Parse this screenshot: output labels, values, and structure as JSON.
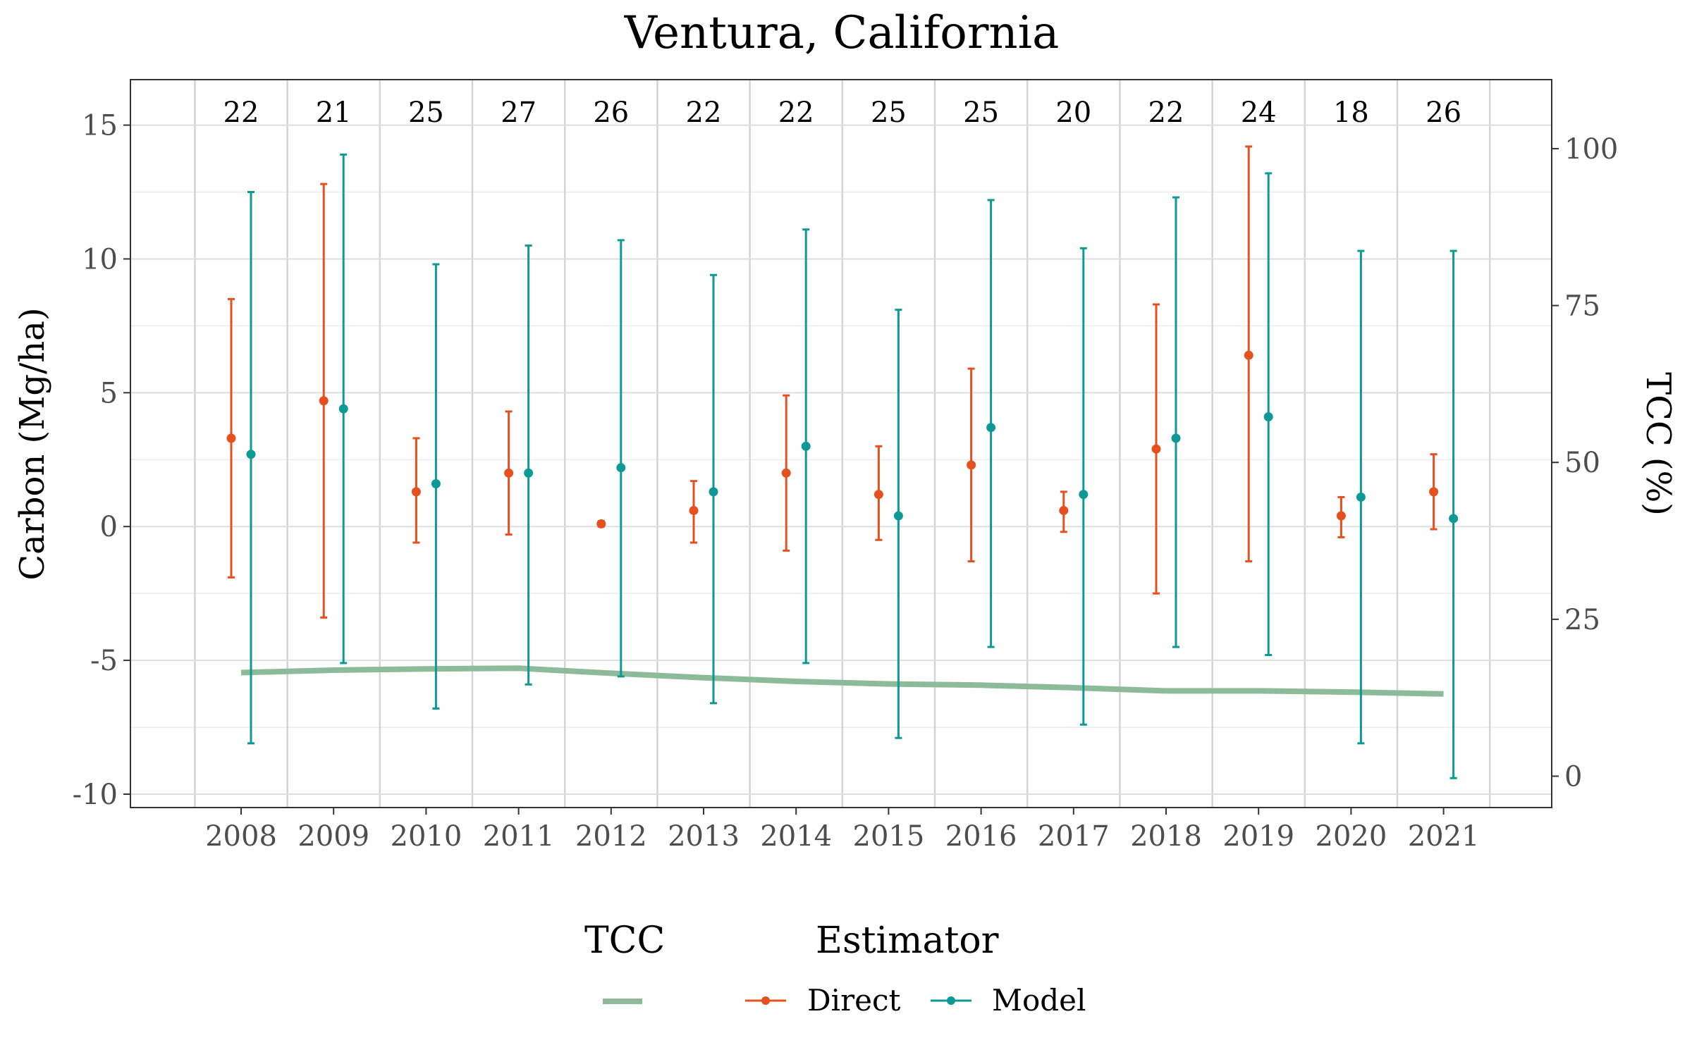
{
  "chart_data": {
    "type": "line",
    "title": "Ventura, California",
    "xlabel": "",
    "ylabel": "Carbon (Mg/ha)",
    "y2label": "TCC (%)",
    "categories": [
      "2008",
      "2009",
      "2010",
      "2011",
      "2012",
      "2013",
      "2014",
      "2015",
      "2016",
      "2017",
      "2018",
      "2019",
      "2020",
      "2021"
    ],
    "counts": [
      "22",
      "21",
      "25",
      "27",
      "26",
      "22",
      "22",
      "25",
      "25",
      "20",
      "22",
      "24",
      "18",
      "26"
    ],
    "ylim": [
      -10.5,
      16.7
    ],
    "yticks": [
      -10,
      -5,
      0,
      5,
      10,
      15
    ],
    "ytick_labels": [
      "-10",
      "-5",
      "0",
      "5",
      "10",
      "15"
    ],
    "y2lim": [
      -5.0,
      111.0
    ],
    "y2ticks": [
      0,
      25,
      50,
      75,
      100
    ],
    "y2tick_labels": [
      "0",
      "25",
      "50",
      "75",
      "100"
    ],
    "grid": true,
    "legend_position": "bottom",
    "series": [
      {
        "name": "Direct",
        "color": "#e6501e",
        "values": [
          3.3,
          4.7,
          1.3,
          2.0,
          0.1,
          0.6,
          2.0,
          1.2,
          2.3,
          0.6,
          2.9,
          6.4,
          0.4,
          1.3
        ],
        "lower": [
          -1.9,
          -3.4,
          -0.6,
          -0.3,
          0.0,
          -0.6,
          -0.9,
          -0.5,
          -1.3,
          -0.2,
          -2.5,
          -1.3,
          -0.4,
          -0.1
        ],
        "upper": [
          8.5,
          12.8,
          3.3,
          4.3,
          0.2,
          1.7,
          4.9,
          3.0,
          5.9,
          1.3,
          8.3,
          14.2,
          1.1,
          2.7
        ]
      },
      {
        "name": "Model",
        "color": "#0d9a96",
        "values": [
          2.7,
          4.4,
          1.6,
          2.0,
          2.2,
          1.3,
          3.0,
          0.4,
          3.7,
          1.2,
          3.3,
          4.1,
          1.1,
          0.3
        ],
        "lower": [
          -8.1,
          -5.1,
          -6.8,
          -5.9,
          -5.6,
          -6.6,
          -5.1,
          -7.9,
          -4.5,
          -7.4,
          -4.5,
          -4.8,
          -8.1,
          -9.4
        ],
        "upper": [
          12.5,
          13.9,
          9.8,
          10.5,
          10.7,
          9.4,
          11.1,
          8.1,
          12.2,
          10.4,
          12.3,
          13.2,
          10.3,
          10.3
        ]
      }
    ],
    "tcc": {
      "name": "TCC",
      "color": "#8dbb99",
      "values": [
        16.5,
        16.9,
        17.1,
        17.2,
        16.4,
        15.7,
        15.1,
        14.7,
        14.5,
        14.1,
        13.6,
        13.6,
        13.4,
        13.1
      ]
    },
    "legend": {
      "tcc_title": "TCC",
      "estimator_title": "Estimator",
      "direct_label": "Direct",
      "model_label": "Model"
    }
  }
}
